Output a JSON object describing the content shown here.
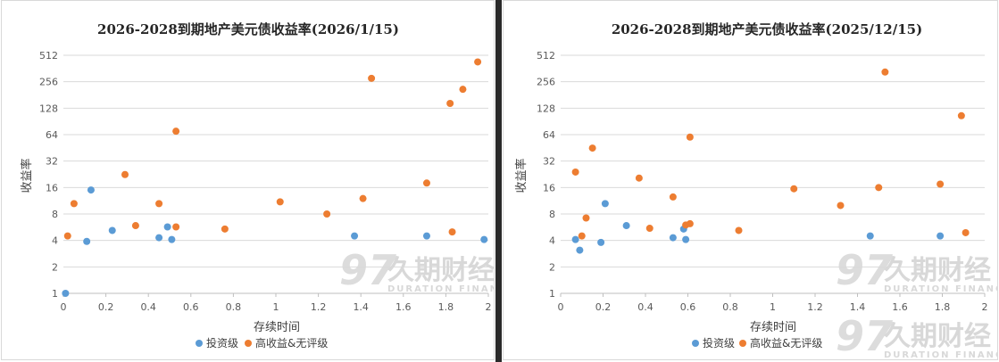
{
  "colors": {
    "investment_grade": "#5b9bd5",
    "high_yield": "#ed7d31"
  },
  "watermark": {
    "logo": "97",
    "name_cn": "久期财经",
    "name_en": "DURATION FINANCE"
  },
  "chart_data": [
    {
      "type": "scatter",
      "title": "2026-2028到期地产美元债收益率(2026/1/15)",
      "xlabel": "存续时间",
      "ylabel": "收益率",
      "xlim": [
        0,
        2
      ],
      "ylim": [
        1,
        512
      ],
      "yscale": "log2",
      "xticks": [
        "0",
        "0.2",
        "0.4",
        "0.6",
        "0.8",
        "1",
        "1.2",
        "1.4",
        "1.6",
        "1.8",
        "2"
      ],
      "yticks": [
        "1",
        "2",
        "4",
        "8",
        "16",
        "32",
        "64",
        "128",
        "256",
        "512"
      ],
      "legend_position": "bottom",
      "series": [
        {
          "name": "投资级",
          "points": [
            [
              0.01,
              1.0
            ],
            [
              0.11,
              3.9
            ],
            [
              0.13,
              15.0
            ],
            [
              0.23,
              5.2
            ],
            [
              0.45,
              4.3
            ],
            [
              0.49,
              5.7
            ],
            [
              0.51,
              4.1
            ],
            [
              1.37,
              4.5
            ],
            [
              1.71,
              4.5
            ],
            [
              1.98,
              4.1
            ]
          ]
        },
        {
          "name": "高收益&无评级",
          "points": [
            [
              0.02,
              4.5
            ],
            [
              0.05,
              10.5
            ],
            [
              0.29,
              22.5
            ],
            [
              0.34,
              5.9
            ],
            [
              0.45,
              10.5
            ],
            [
              0.53,
              70.0
            ],
            [
              0.53,
              5.7
            ],
            [
              0.76,
              5.4
            ],
            [
              1.02,
              11.0
            ],
            [
              1.24,
              8.0
            ],
            [
              1.41,
              12.0
            ],
            [
              1.45,
              280.0
            ],
            [
              1.71,
              18.0
            ],
            [
              1.82,
              145.0
            ],
            [
              1.83,
              5.0
            ],
            [
              1.88,
              210.0
            ],
            [
              1.95,
              430.0
            ]
          ]
        }
      ]
    },
    {
      "type": "scatter",
      "title": "2026-2028到期地产美元债收益率(2025/12/15)",
      "xlabel": "存续时间",
      "ylabel": "收益率",
      "xlim": [
        0,
        2
      ],
      "ylim": [
        1,
        512
      ],
      "yscale": "log2",
      "xticks": [
        "0",
        "0.2",
        "0.4",
        "0.6",
        "0.8",
        "1",
        "1.2",
        "1.4",
        "1.6",
        "1.8",
        "2"
      ],
      "yticks": [
        "1",
        "2",
        "4",
        "8",
        "16",
        "32",
        "64",
        "128",
        "256",
        "512"
      ],
      "legend_position": "bottom",
      "series": [
        {
          "name": "投资级",
          "points": [
            [
              0.07,
              4.1
            ],
            [
              0.09,
              3.1
            ],
            [
              0.19,
              3.8
            ],
            [
              0.21,
              10.5
            ],
            [
              0.31,
              5.9
            ],
            [
              0.53,
              4.3
            ],
            [
              0.58,
              5.4
            ],
            [
              0.59,
              4.1
            ],
            [
              1.46,
              4.5
            ],
            [
              1.79,
              4.5
            ]
          ]
        },
        {
          "name": "高收益&无评级",
          "points": [
            [
              0.07,
              24.0
            ],
            [
              0.1,
              4.5
            ],
            [
              0.12,
              7.2
            ],
            [
              0.15,
              45.0
            ],
            [
              0.37,
              20.5
            ],
            [
              0.42,
              5.5
            ],
            [
              0.53,
              12.5
            ],
            [
              0.59,
              6.0
            ],
            [
              0.61,
              6.2
            ],
            [
              0.61,
              60.0
            ],
            [
              0.84,
              5.2
            ],
            [
              1.1,
              15.5
            ],
            [
              1.32,
              10.0
            ],
            [
              1.5,
              16.0
            ],
            [
              1.53,
              330.0
            ],
            [
              1.79,
              17.5
            ],
            [
              1.89,
              105.0
            ],
            [
              1.91,
              4.9
            ]
          ]
        }
      ]
    }
  ]
}
